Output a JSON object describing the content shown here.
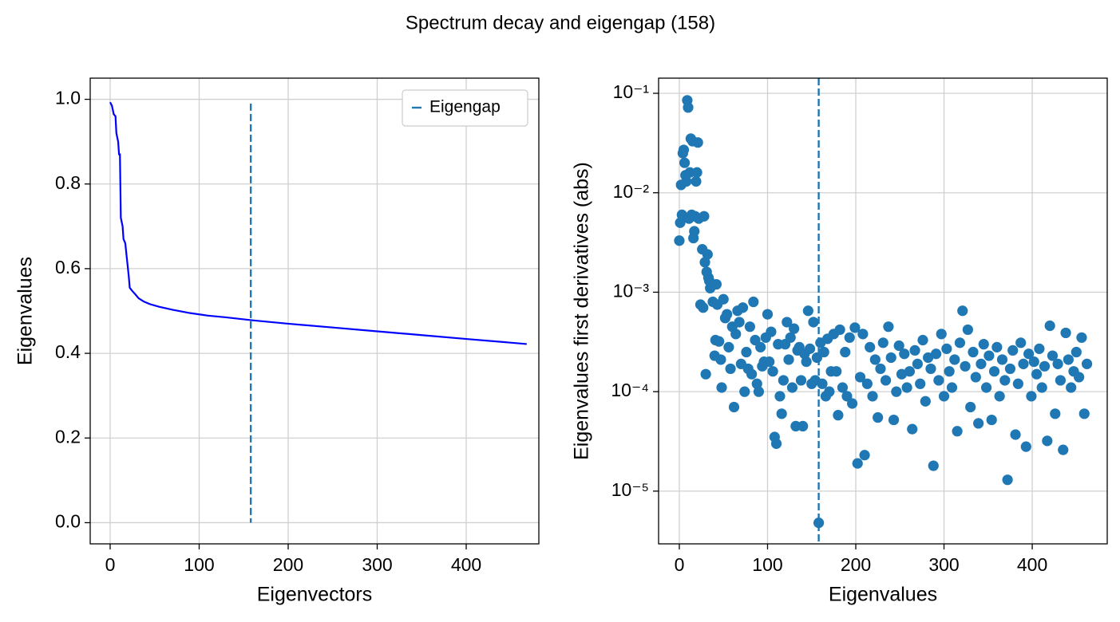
{
  "title": "Spectrum decay and eigengap (158)",
  "chart_data": [
    {
      "type": "line",
      "xlabel": "Eigenvectors",
      "ylabel": "Eigenvalues",
      "color": "#0000ff",
      "x": [
        0,
        2,
        4,
        6,
        7,
        9,
        10,
        11,
        12,
        13,
        14,
        15,
        17,
        19,
        20,
        21,
        22,
        25,
        28,
        32,
        38,
        45,
        55,
        70,
        90,
        110,
        130,
        160,
        200,
        250,
        300,
        350,
        400,
        440,
        468
      ],
      "values": [
        0.993,
        0.985,
        0.965,
        0.96,
        0.92,
        0.9,
        0.87,
        0.87,
        0.72,
        0.71,
        0.7,
        0.67,
        0.66,
        0.62,
        0.6,
        0.58,
        0.555,
        0.547,
        0.54,
        0.53,
        0.522,
        0.516,
        0.51,
        0.503,
        0.495,
        0.489,
        0.485,
        0.478,
        0.47,
        0.461,
        0.452,
        0.443,
        0.434,
        0.427,
        0.422
      ],
      "xlim": [
        -22.4,
        481.6
      ],
      "ylim": [
        -0.05,
        1.05
      ],
      "xticks": [
        0,
        100,
        200,
        300,
        400
      ],
      "yticks": [
        {
          "value": 0,
          "label": "0.0"
        },
        0.2,
        0.4,
        0.6,
        0.8,
        {
          "value": 1,
          "label": "1.0"
        }
      ],
      "grid": true,
      "eigengap": {
        "x": 158,
        "ymin": 0,
        "ymax": 0.99,
        "color": "#1f77b4",
        "label": "Eigengap"
      },
      "legend": "upper right"
    },
    {
      "type": "scatter",
      "xlabel": "Eigenvalues",
      "ylabel": "Eigenvalues first derivatives (abs)",
      "color": "#1f77b4",
      "x": [
        0,
        1,
        2,
        3,
        4,
        5,
        6,
        7,
        8,
        9,
        10,
        11,
        12,
        13,
        14,
        15,
        16,
        17,
        18,
        19,
        20,
        21,
        22,
        24,
        26,
        27,
        28,
        29,
        30,
        31,
        32,
        33,
        34,
        35,
        37,
        38,
        40,
        41,
        42,
        43,
        45,
        47,
        48,
        50,
        52,
        54,
        56,
        58,
        60,
        62,
        64,
        66,
        68,
        70,
        72,
        74,
        76,
        78,
        80,
        82,
        84,
        86,
        88,
        90,
        92,
        94,
        96,
        98,
        100,
        102,
        104,
        106,
        108,
        110,
        112,
        114,
        116,
        118,
        120,
        122,
        124,
        126,
        128,
        130,
        132,
        134,
        136,
        138,
        140,
        142,
        144,
        146,
        148,
        150,
        152,
        154,
        156,
        158,
        160,
        162,
        164,
        166,
        168,
        170,
        172,
        175,
        178,
        180,
        182,
        185,
        188,
        190,
        193,
        196,
        199,
        202,
        205,
        208,
        210,
        213,
        216,
        219,
        222,
        225,
        228,
        231,
        234,
        237,
        240,
        243,
        246,
        249,
        252,
        255,
        258,
        261,
        264,
        267,
        270,
        273,
        276,
        279,
        282,
        285,
        288,
        291,
        294,
        297,
        300,
        303,
        306,
        309,
        312,
        315,
        318,
        321,
        324,
        327,
        330,
        333,
        336,
        339,
        342,
        345,
        348,
        351,
        354,
        357,
        360,
        363,
        366,
        369,
        372,
        375,
        378,
        381,
        384,
        387,
        390,
        393,
        396,
        399,
        402,
        405,
        408,
        411,
        414,
        417,
        420,
        423,
        426,
        429,
        432,
        435,
        438,
        441,
        444,
        447,
        450,
        453,
        456,
        459,
        462
      ],
      "values": [
        0.0033,
        0.005,
        0.012,
        0.006,
        0.025,
        0.027,
        0.02,
        0.015,
        0.013,
        0.085,
        0.072,
        0.0055,
        0.016,
        0.035,
        0.006,
        0.033,
        0.0035,
        0.0041,
        0.0058,
        0.013,
        0.016,
        0.032,
        0.0055,
        0.00075,
        0.0027,
        0.0007,
        0.0058,
        0.002,
        0.00015,
        0.0016,
        0.0024,
        0.0014,
        0.0013,
        0.0011,
        0.0012,
        0.0008,
        0.00023,
        0.00033,
        0.0012,
        0.00075,
        0.00032,
        0.00021,
        0.00011,
        0.00085,
        0.00055,
        0.0006,
        0.00028,
        0.00017,
        0.00045,
        7e-05,
        0.00038,
        0.00065,
        0.0005,
        0.00019,
        0.0007,
        0.0001,
        0.00025,
        0.00017,
        0.00045,
        0.00015,
        0.0008,
        0.00033,
        0.00012,
        0.0001,
        0.00028,
        0.00018,
        0.0002,
        0.00035,
        0.0006,
        0.0002,
        0.0004,
        0.00016,
        3.5e-05,
        3e-05,
        0.0003,
        9e-05,
        6e-05,
        0.00013,
        0.0003,
        0.0005,
        0.00021,
        0.00035,
        0.00011,
        0.00043,
        4.5e-05,
        0.00026,
        0.00028,
        0.00013,
        4.5e-05,
        0.00024,
        0.0002,
        0.00065,
        0.00027,
        0.00012,
        0.0005,
        0.00013,
        0.00022,
        4.8e-06,
        0.00031,
        0.00012,
        0.00025,
        9e-05,
        0.00034,
        0.0001,
        0.00016,
        0.00038,
        0.00016,
        5.8e-05,
        0.00042,
        0.00011,
        0.00025,
        9e-05,
        0.00035,
        7.6e-05,
        0.00044,
        1.9e-05,
        0.00014,
        0.00038,
        2.3e-05,
        0.00012,
        0.00028,
        9e-05,
        0.00021,
        5.5e-05,
        0.00017,
        0.00031,
        0.00013,
        0.00045,
        0.00022,
        5.2e-05,
        0.0001,
        0.00029,
        0.00015,
        0.00024,
        0.00011,
        0.00016,
        4.2e-05,
        0.00026,
        0.00019,
        0.00012,
        0.00033,
        8e-05,
        0.00022,
        0.00017,
        1.8e-05,
        0.00024,
        0.00013,
        0.00038,
        9e-05,
        0.00027,
        0.00016,
        0.00011,
        0.00021,
        4e-05,
        0.00031,
        0.00065,
        0.00018,
        0.00042,
        7e-05,
        0.00025,
        0.00014,
        4.8e-05,
        0.00019,
        0.0003,
        0.00011,
        0.00023,
        5.2e-05,
        0.00016,
        0.00028,
        9e-05,
        0.00021,
        0.00013,
        1.3e-05,
        0.00017,
        0.00026,
        3.7e-05,
        0.00012,
        0.00031,
        0.00019,
        2.8e-05,
        0.00024,
        9e-05,
        0.0002,
        0.00015,
        0.00027,
        0.00011,
        0.00018,
        3.2e-05,
        0.00046,
        0.00023,
        6e-05,
        0.00019,
        0.00013,
        2.6e-05,
        0.00039,
        0.00021,
        0.00011,
        0.00016,
        0.00025,
        0.00014,
        0.00035,
        6e-05,
        0.00019
      ],
      "xlim": [
        -23.5,
        485
      ],
      "ylim": [
        2.95e-06,
        0.142
      ],
      "ylog": true,
      "xticks": [
        0,
        100,
        200,
        300,
        400
      ],
      "yticks": [
        {
          "value": 1e-05,
          "label": "10⁻⁵"
        },
        {
          "value": 0.0001,
          "label": "10⁻⁴"
        },
        {
          "value": 0.001,
          "label": "10⁻³"
        },
        {
          "value": 0.01,
          "label": "10⁻²"
        },
        {
          "value": 0.1,
          "label": "10⁻¹"
        }
      ],
      "grid": true,
      "eigengap": {
        "x": 158,
        "color": "#1f77b4"
      }
    }
  ]
}
